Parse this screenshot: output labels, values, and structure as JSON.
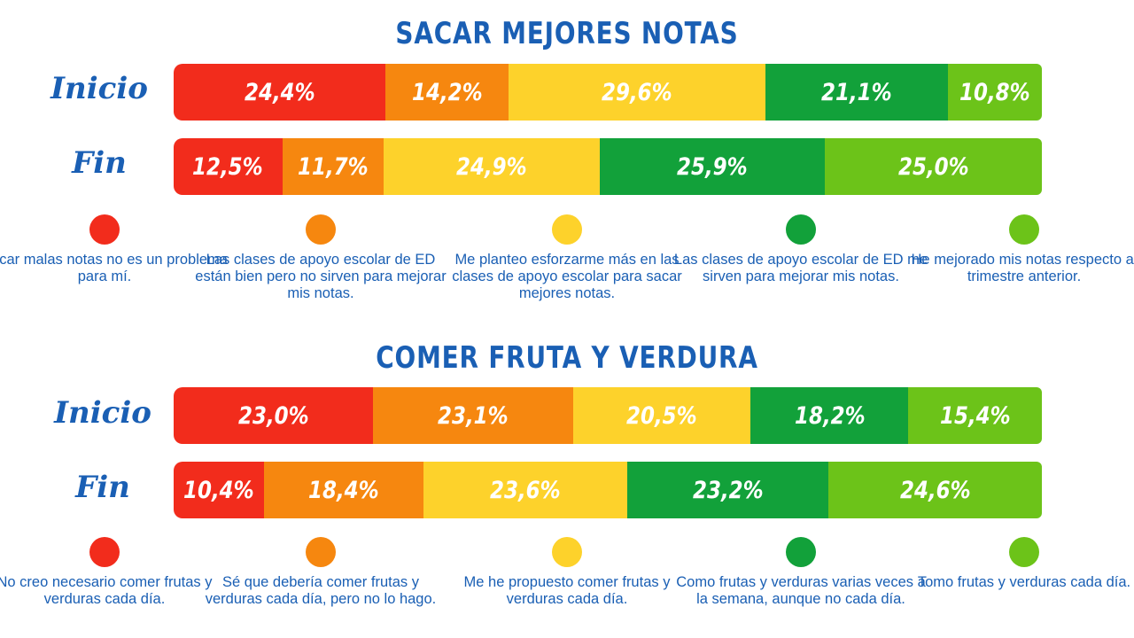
{
  "chart_data": [
    {
      "type": "bar",
      "stacked": true,
      "orientation": "horizontal",
      "title": "SACAR MEJORES NOTAS",
      "categories": [
        "Inicio",
        "Fin"
      ],
      "series": [
        {
          "name": "Sacar malas notas no es un problema para mí.",
          "color": "#f22c1c",
          "values": [
            24.4,
            12.5
          ],
          "labels": [
            "24,4%",
            "12,5%"
          ]
        },
        {
          "name": "Las clases de apoyo escolar de ED están bien pero no sirven para mejorar mis notas.",
          "color": "#f6870f",
          "values": [
            14.2,
            11.7
          ],
          "labels": [
            "14,2%",
            "11,7%"
          ]
        },
        {
          "name": "Me planteo esforzarme más en las clases de apoyo escolar para sacar mejores notas.",
          "color": "#fdd22b",
          "values": [
            29.6,
            24.9
          ],
          "labels": [
            "29,6%",
            "24,9%"
          ]
        },
        {
          "name": "Las clases de apoyo escolar de ED me sirven para mejorar mis notas.",
          "color": "#12a13a",
          "values": [
            21.1,
            25.9
          ],
          "labels": [
            "21,1%",
            "25,9%"
          ]
        },
        {
          "name": "He mejorado mis notas respecto al trimestre anterior.",
          "color": "#6cc319",
          "values": [
            10.8,
            25.0
          ],
          "labels": [
            "10,8%",
            "25,0%"
          ]
        }
      ]
    },
    {
      "type": "bar",
      "stacked": true,
      "orientation": "horizontal",
      "title": "COMER FRUTA Y VERDURA",
      "categories": [
        "Inicio",
        "Fin"
      ],
      "series": [
        {
          "name": "No creo necesario comer frutas y verduras cada día.",
          "color": "#f22c1c",
          "values": [
            23.0,
            10.4
          ],
          "labels": [
            "23,0%",
            "10,4%"
          ]
        },
        {
          "name": "Sé que debería comer frutas y verduras cada día, pero no lo hago.",
          "color": "#f6870f",
          "values": [
            23.1,
            18.4
          ],
          "labels": [
            "23,1%",
            "18,4%"
          ]
        },
        {
          "name": "Me he propuesto comer frutas y verduras cada día.",
          "color": "#fdd22b",
          "values": [
            20.5,
            23.6
          ],
          "labels": [
            "20,5%",
            "23,6%"
          ]
        },
        {
          "name": "Como frutas y verduras varias veces a la semana, aunque no cada día.",
          "color": "#12a13a",
          "values": [
            18.2,
            23.2
          ],
          "labels": [
            "18,2%",
            "23,2%"
          ]
        },
        {
          "name": "Tomo frutas y verduras cada día.",
          "color": "#6cc319",
          "values": [
            15.4,
            24.6
          ],
          "labels": [
            "15,4%",
            "24,6%"
          ]
        }
      ]
    }
  ]
}
